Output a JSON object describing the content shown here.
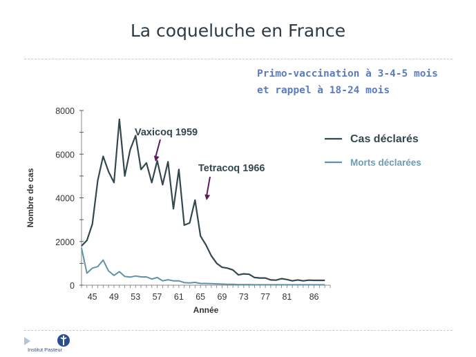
{
  "slide": {
    "title": "La coqueluche en France",
    "note_line1": "Primo-vaccination à 3-4-5 mois",
    "note_line2": "et rappel à 18-24 mois",
    "logo_text": "Institut Pasteur",
    "colors": {
      "title": "#2e3a44",
      "note": "#5b7bbf",
      "cas": "#33474d",
      "morts": "#5e92a8",
      "annotation_arrow": "#5a1a5e"
    }
  },
  "chart_data": {
    "type": "line",
    "xlabel": "Année",
    "ylabel": "Nombre de cas",
    "xlim": [
      1943,
      1989
    ],
    "ylim": [
      0,
      8000
    ],
    "x_ticks": [
      45,
      49,
      53,
      57,
      61,
      65,
      69,
      73,
      77,
      81,
      86
    ],
    "y_ticks": [
      0,
      2000,
      4000,
      6000,
      8000
    ],
    "legend_position": "right",
    "grid": false,
    "series": [
      {
        "name": "Cas déclarés",
        "x": [
          1943,
          1944,
          1945,
          1946,
          1947,
          1948,
          1949,
          1950,
          1951,
          1952,
          1953,
          1954,
          1955,
          1956,
          1957,
          1958,
          1959,
          1960,
          1961,
          1962,
          1963,
          1964,
          1965,
          1966,
          1967,
          1968,
          1969,
          1970,
          1971,
          1972,
          1973,
          1974,
          1975,
          1976,
          1977,
          1978,
          1979,
          1980,
          1981,
          1982,
          1983,
          1984,
          1985,
          1986,
          1987,
          1988
        ],
        "y": [
          1800,
          2050,
          2800,
          4800,
          5900,
          5200,
          4700,
          7600,
          5000,
          6200,
          6850,
          5300,
          5600,
          4700,
          5700,
          4600,
          5650,
          3500,
          5300,
          2750,
          2850,
          3900,
          2250,
          1850,
          1350,
          1000,
          820,
          780,
          700,
          470,
          520,
          500,
          350,
          330,
          330,
          240,
          230,
          300,
          260,
          200,
          240,
          200,
          230,
          220,
          220,
          220
        ]
      },
      {
        "name": "Morts déclarées",
        "x": [
          1943,
          1944,
          1945,
          1946,
          1947,
          1948,
          1949,
          1950,
          1951,
          1952,
          1953,
          1954,
          1955,
          1956,
          1957,
          1958,
          1959,
          1960,
          1961,
          1962,
          1963,
          1964,
          1965,
          1966,
          1967,
          1968,
          1969,
          1970,
          1971,
          1972,
          1973,
          1974,
          1975,
          1976,
          1977,
          1978,
          1979,
          1980,
          1981,
          1982,
          1983,
          1984,
          1985,
          1986,
          1987,
          1988
        ],
        "y": [
          1700,
          550,
          780,
          850,
          1150,
          650,
          450,
          620,
          400,
          370,
          420,
          380,
          380,
          280,
          350,
          200,
          250,
          200,
          200,
          120,
          100,
          130,
          80,
          80,
          70,
          60,
          50,
          40,
          40,
          30,
          30,
          30,
          20,
          20,
          20,
          20,
          20,
          20,
          20,
          20,
          20,
          20,
          20,
          20,
          20,
          20
        ]
      }
    ],
    "annotations": [
      {
        "text": "Vaxicoq 1959",
        "x": 1959,
        "y": 5600
      },
      {
        "text": "Tetracoq 1966",
        "x": 1966,
        "y": 3900
      }
    ]
  }
}
